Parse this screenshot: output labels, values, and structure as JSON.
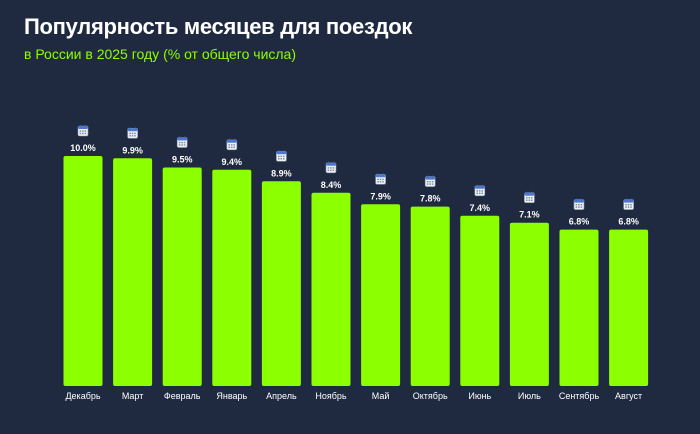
{
  "title": "Популярность месяцев для поездок",
  "subtitle": "в России в 2025 году (% от общего числа)",
  "chart_data": {
    "type": "bar",
    "categories": [
      "Декабрь",
      "Март",
      "Февраль",
      "Январь",
      "Апрель",
      "Ноябрь",
      "Май",
      "Октябрь",
      "Июнь",
      "Июль",
      "Сентябрь",
      "Август"
    ],
    "values": [
      10.0,
      9.9,
      9.5,
      9.4,
      8.9,
      8.4,
      7.9,
      7.8,
      7.4,
      7.1,
      6.8,
      6.8
    ],
    "value_labels": [
      "10.0%",
      "9.9%",
      "9.5%",
      "9.4%",
      "8.9%",
      "8.4%",
      "7.9%",
      "7.8%",
      "7.4%",
      "7.1%",
      "6.8%",
      "6.8%"
    ],
    "title": "Популярность месяцев для поездок",
    "subtitle": "в России в 2025 году (% от общего числа)",
    "xlabel": "",
    "ylabel": "",
    "ylim": [
      0,
      10
    ],
    "grid": false,
    "legend": "none",
    "marker_icon": "calendar-icon",
    "colors": {
      "background": "#1f2a40",
      "bar": "#8cff00",
      "text": "#ffffff",
      "subtitle": "#8cff00"
    }
  }
}
